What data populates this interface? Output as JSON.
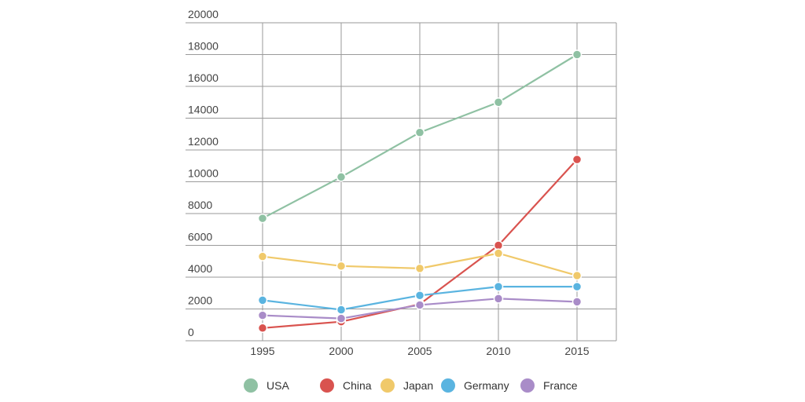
{
  "chart_data": {
    "type": "line",
    "title": "",
    "xlabel": "",
    "ylabel": "",
    "x": [
      "1995",
      "2000",
      "2005",
      "2010",
      "2015"
    ],
    "ylim": [
      0,
      20000
    ],
    "yticks": [
      0,
      2000,
      4000,
      6000,
      8000,
      10000,
      12000,
      14000,
      16000,
      18000,
      20000
    ],
    "grid": true,
    "legend_position": "bottom",
    "series": [
      {
        "name": "USA",
        "color": "#8fc1a3",
        "values": [
          7700,
          10300,
          13100,
          15000,
          18000
        ]
      },
      {
        "name": "China",
        "color": "#d9534f",
        "values": [
          800,
          1200,
          2300,
          6000,
          11400
        ]
      },
      {
        "name": "Japan",
        "color": "#f0c96a",
        "values": [
          5300,
          4700,
          4550,
          5500,
          4100
        ]
      },
      {
        "name": "Germany",
        "color": "#5ab4e0",
        "values": [
          2550,
          1950,
          2850,
          3400,
          3400
        ]
      },
      {
        "name": "France",
        "color": "#a98cc8",
        "values": [
          1600,
          1400,
          2250,
          2650,
          2450
        ]
      }
    ]
  }
}
